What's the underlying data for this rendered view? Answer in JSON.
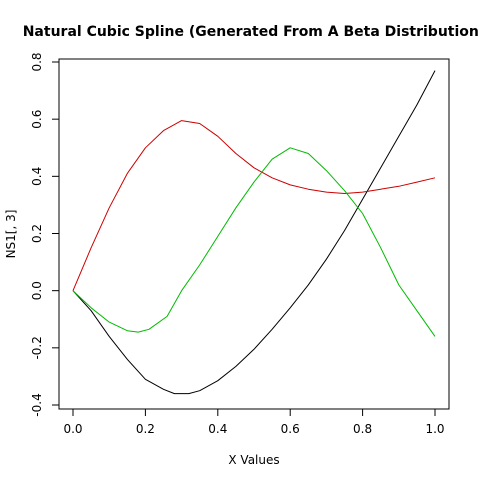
{
  "chart_data": {
    "type": "line",
    "title": "Natural Cubic Spline (Generated From A Beta Distribution)",
    "xlabel": "X Values",
    "ylabel": "NS1[, 3]",
    "xlim": [
      0.0,
      1.0
    ],
    "ylim": [
      -0.4,
      0.8
    ],
    "xticks": [
      "0.0",
      "0.2",
      "0.4",
      "0.6",
      "0.8",
      "1.0"
    ],
    "yticks": [
      "-0.4",
      "-0.2",
      "0.0",
      "0.2",
      "0.4",
      "0.6",
      "0.8"
    ],
    "grid": false,
    "legend": "none",
    "series": [
      {
        "color": "#000000",
        "x": [
          0.0,
          0.05,
          0.1,
          0.15,
          0.2,
          0.25,
          0.28,
          0.32,
          0.35,
          0.4,
          0.45,
          0.5,
          0.55,
          0.6,
          0.65,
          0.7,
          0.75,
          0.8,
          0.85,
          0.9,
          0.95,
          1.0
        ],
        "y": [
          0.0,
          -0.07,
          -0.16,
          -0.24,
          -0.31,
          -0.345,
          -0.36,
          -0.36,
          -0.35,
          -0.315,
          -0.265,
          -0.205,
          -0.135,
          -0.06,
          0.02,
          0.11,
          0.21,
          0.32,
          0.43,
          0.54,
          0.65,
          0.77
        ]
      },
      {
        "color": "#cc0000",
        "x": [
          0.0,
          0.05,
          0.1,
          0.15,
          0.2,
          0.25,
          0.3,
          0.35,
          0.4,
          0.45,
          0.5,
          0.55,
          0.6,
          0.65,
          0.7,
          0.75,
          0.8,
          0.85,
          0.9,
          0.95,
          1.0
        ],
        "y": [
          0.0,
          0.15,
          0.29,
          0.41,
          0.5,
          0.56,
          0.595,
          0.585,
          0.54,
          0.48,
          0.43,
          0.395,
          0.37,
          0.355,
          0.345,
          0.34,
          0.345,
          0.355,
          0.365,
          0.38,
          0.395
        ]
      },
      {
        "color": "#00bb00",
        "x": [
          0.0,
          0.05,
          0.1,
          0.15,
          0.18,
          0.21,
          0.26,
          0.3,
          0.35,
          0.4,
          0.45,
          0.5,
          0.55,
          0.6,
          0.65,
          0.7,
          0.75,
          0.8,
          0.85,
          0.9,
          0.95,
          1.0
        ],
        "y": [
          0.0,
          -0.06,
          -0.11,
          -0.14,
          -0.145,
          -0.135,
          -0.09,
          0.0,
          0.09,
          0.19,
          0.29,
          0.38,
          0.46,
          0.5,
          0.48,
          0.42,
          0.35,
          0.27,
          0.15,
          0.02,
          -0.07,
          -0.16
        ]
      }
    ]
  }
}
